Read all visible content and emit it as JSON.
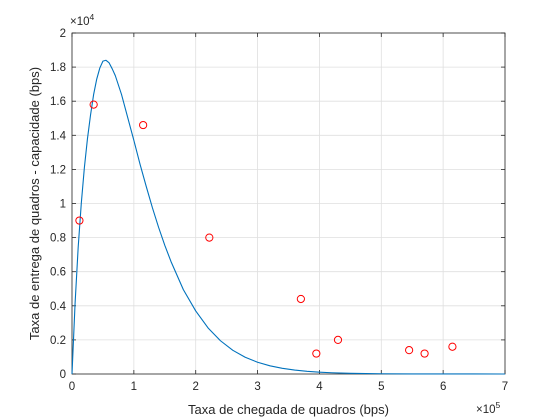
{
  "chart_data": {
    "type": "scatter",
    "xlabel": "Taxa de chegada de quadros (bps)",
    "ylabel": "Taxa de entrega de quadros - capacidade (bps)",
    "xlim": [
      0,
      700000
    ],
    "ylim": [
      0,
      20000
    ],
    "x_multiplier": {
      "base": "×10",
      "exponent": "5"
    },
    "y_multiplier": {
      "base": "×10",
      "exponent": "4"
    },
    "xticks": [
      0,
      1,
      2,
      3,
      4,
      5,
      6,
      7
    ],
    "xtick_labels": [
      "0",
      "1",
      "2",
      "3",
      "4",
      "5",
      "6",
      "7"
    ],
    "yticks": [
      0,
      0.2,
      0.4,
      0.6,
      0.8,
      1,
      1.2,
      1.4,
      1.6,
      1.8,
      2
    ],
    "ytick_labels": [
      "0",
      "0.2",
      "0.4",
      "0.6",
      "0.8",
      "1",
      "1.2",
      "1.4",
      "1.6",
      "1.8",
      "2"
    ],
    "grid": true,
    "series": [
      {
        "kind": "line",
        "color": "#0072bd",
        "x": [
          0,
          5000,
          10000,
          15000,
          20000,
          25000,
          30000,
          35000,
          40000,
          45000,
          50000,
          55000,
          60000,
          65000,
          70000,
          80000,
          90000,
          100000,
          110000,
          120000,
          130000,
          140000,
          150000,
          160000,
          180000,
          200000,
          220000,
          240000,
          260000,
          280000,
          300000,
          320000,
          340000,
          360000,
          380000,
          400000,
          420000,
          450000,
          500000,
          550000,
          600000,
          650000,
          700000
        ],
        "y": [
          0,
          4150,
          7440,
          10000,
          12100,
          13800,
          15200,
          16400,
          17300,
          17950,
          18350,
          18400,
          18250,
          17900,
          17500,
          16400,
          15050,
          13700,
          12300,
          11000,
          9750,
          8600,
          7550,
          6600,
          4950,
          3700,
          2700,
          1950,
          1390,
          985,
          690,
          480,
          335,
          230,
          158,
          108,
          73,
          40,
          14,
          5,
          2,
          1,
          0
        ]
      },
      {
        "kind": "scatter",
        "marker": "circle-open",
        "color": "#ff0000",
        "x": [
          12000,
          35000,
          115000,
          222000,
          370000,
          395000,
          430000,
          545000,
          570000,
          615000
        ],
        "y": [
          9000,
          15800,
          14600,
          8000,
          4400,
          1200,
          2000,
          1400,
          1200,
          1600
        ]
      }
    ]
  }
}
